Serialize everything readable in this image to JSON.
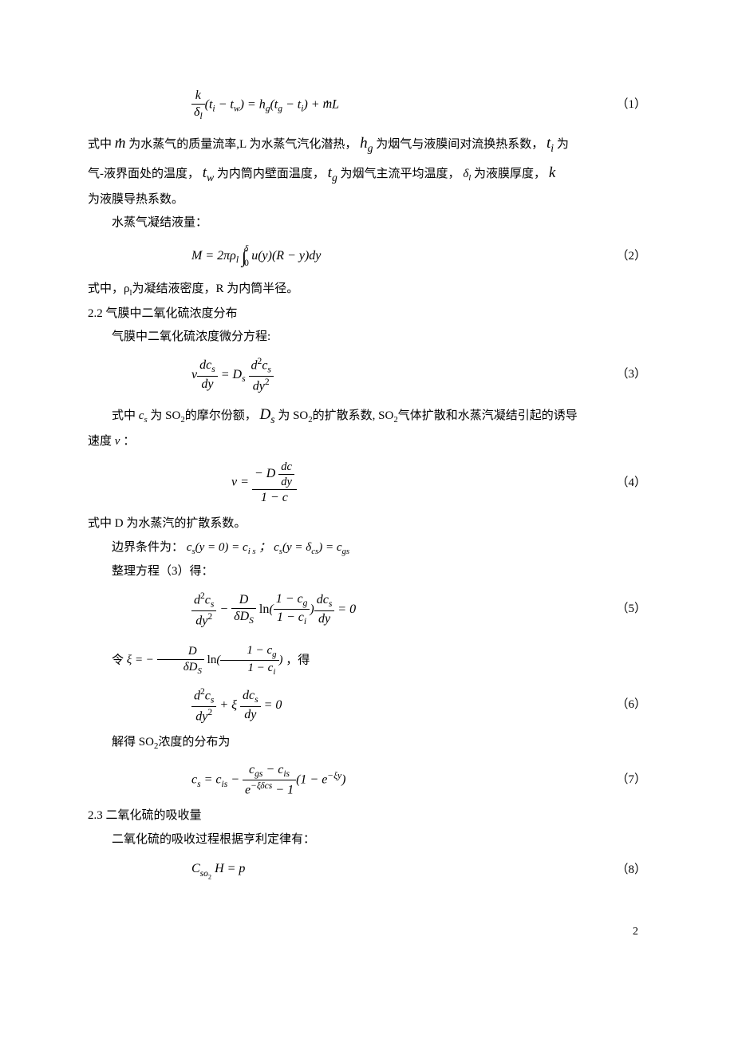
{
  "eq1": {
    "body": "<span class='frac'><span class='num'>k</span><span class='den'>δ<sub>l</sub></span></span>(t<sub>i</sub> − t<sub>w</sub>) = h<sub>g</sub>(t<sub>g</sub> − t<sub>i</sub>) + <span class='dot-over'>m</span>L",
    "num": "（1）"
  },
  "p1a": "式中",
  "p1b": "为水蒸气的质量流率,L 为水蒸气汽化潜热，",
  "p1c": "为烟气与液膜间对流换热系数，",
  "p1d": "为",
  "p2a": "气-液界面处的温度，",
  "p2b": "为内筒内壁面温度，",
  "p2c": "为烟气主流平均温度，",
  "p2d": "为液膜厚度，",
  "p3": "为液膜导热系数。",
  "p4": "水蒸气凝结液量：",
  "eq2": {
    "body": "M = 2πρ<sub>l</sub> <span class='int'>∫</span><sub class='rm' style='vertical-align:-8px;margin-left:-3px'>0</sub><sup style='vertical-align:10px;margin-left:-6px'>δ</sup> u(y)(R − y)dy",
    "num": "（2）"
  },
  "p5": "式中，ρ<sub class='rm'>l</sub>为凝结液密度，R 为内筒半径。",
  "p6": "2.2 气膜中二氧化硫浓度分布",
  "p7": "气膜中二氧化硫浓度微分方程:",
  "eq3": {
    "body": "v<span class='frac'><span class='num'>dc<sub>s</sub></span><span class='den'>dy</span></span> = D<sub>s</sub> <span class='frac'><span class='num'>d<sup class='rm'>2</sup>c<sub>s</sub></span><span class='den'>dy<sup class='rm'>2</sup></span></span>",
    "num": "（3）"
  },
  "p8a": "式中",
  "p8b": "为 SO<sub class='rm'>2</sub>的摩尔份额，",
  "p8c": "为 SO<sub class='rm'>2</sub>的扩散系数, SO<sub class='rm'>2</sub>气体扩散和水蒸汽凝结引起的诱导",
  "p9": "速度",
  "eq4": {
    "body": "v = <span class='frac'><span class='num'>− D <span class='frac' style='font-size:0.9em'><span class='num'>dc</span><span class='den'>dy</span></span></span><span class='den'>1 − c</span></span>",
    "num": "（4）"
  },
  "p10": "式中 D 为水蒸汽的扩散系数。",
  "p11a": "边界条件为：",
  "p11b": "c<sub>s</sub>(y = 0) = c<sub>i s</sub> ； c<sub>s</sub>(y = δ<sub>cs</sub>) = c<sub>gs</sub>",
  "p12": "整理方程（3）得：",
  "eq5": {
    "body": "<span class='frac'><span class='num'>d<sup class='rm'>2</sup>c<sub>s</sub></span><span class='den'>dy<sup class='rm'>2</sup></span></span> − <span class='frac'><span class='num'>D</span><span class='den'>δD<sub>S</sub></span></span> <span class='rm'>ln</span>(<span class='frac'><span class='num'>1 − c<sub>g</sub></span><span class='den'>1 − c<sub>i</sub></span></span>)<span class='frac'><span class='num'>dc<sub>s</sub></span><span class='den'>dy</span></span> = 0",
    "num": "（5）"
  },
  "p13a": "令",
  "p13b": "ξ = − <span class='frac'><span class='num'>D</span><span class='den'>δD<sub>S</sub></span></span> <span class='rm'>ln</span>(<span class='frac'><span class='num'>1 − c<sub>g</sub></span><span class='den'>1 − c<sub>i</sub></span></span>)",
  "p13c": "，得",
  "eq6": {
    "body": "<span class='frac'><span class='num'>d<sup class='rm'>2</sup>c<sub>s</sub></span><span class='den'>dy<sup class='rm'>2</sup></span></span> + ξ <span class='frac'><span class='num'>dc<sub>s</sub></span><span class='den'>dy</span></span> = 0",
    "num": "（6）"
  },
  "p14": "解得 SO<sub class='rm'>2</sub>浓度的分布为",
  "eq7": {
    "body": "c<sub>s</sub> = c<sub>is</sub> − <span class='frac'><span class='num'>c<sub>gs</sub> − c<sub>is</sub></span><span class='den'>e<sup>−ξδcs</sup> − 1</span></span>(1 − e<sup>−ξy</sup>)",
    "num": "（7）"
  },
  "p15": "2.3 二氧化硫的吸收量",
  "p16": "二氧化硫的吸收过程根据亨利定律有：",
  "eq8": {
    "body": "C<sub>so<sub class='rm'>2</sub></sub> H = p",
    "num": "（8）"
  },
  "pagenum": "2"
}
